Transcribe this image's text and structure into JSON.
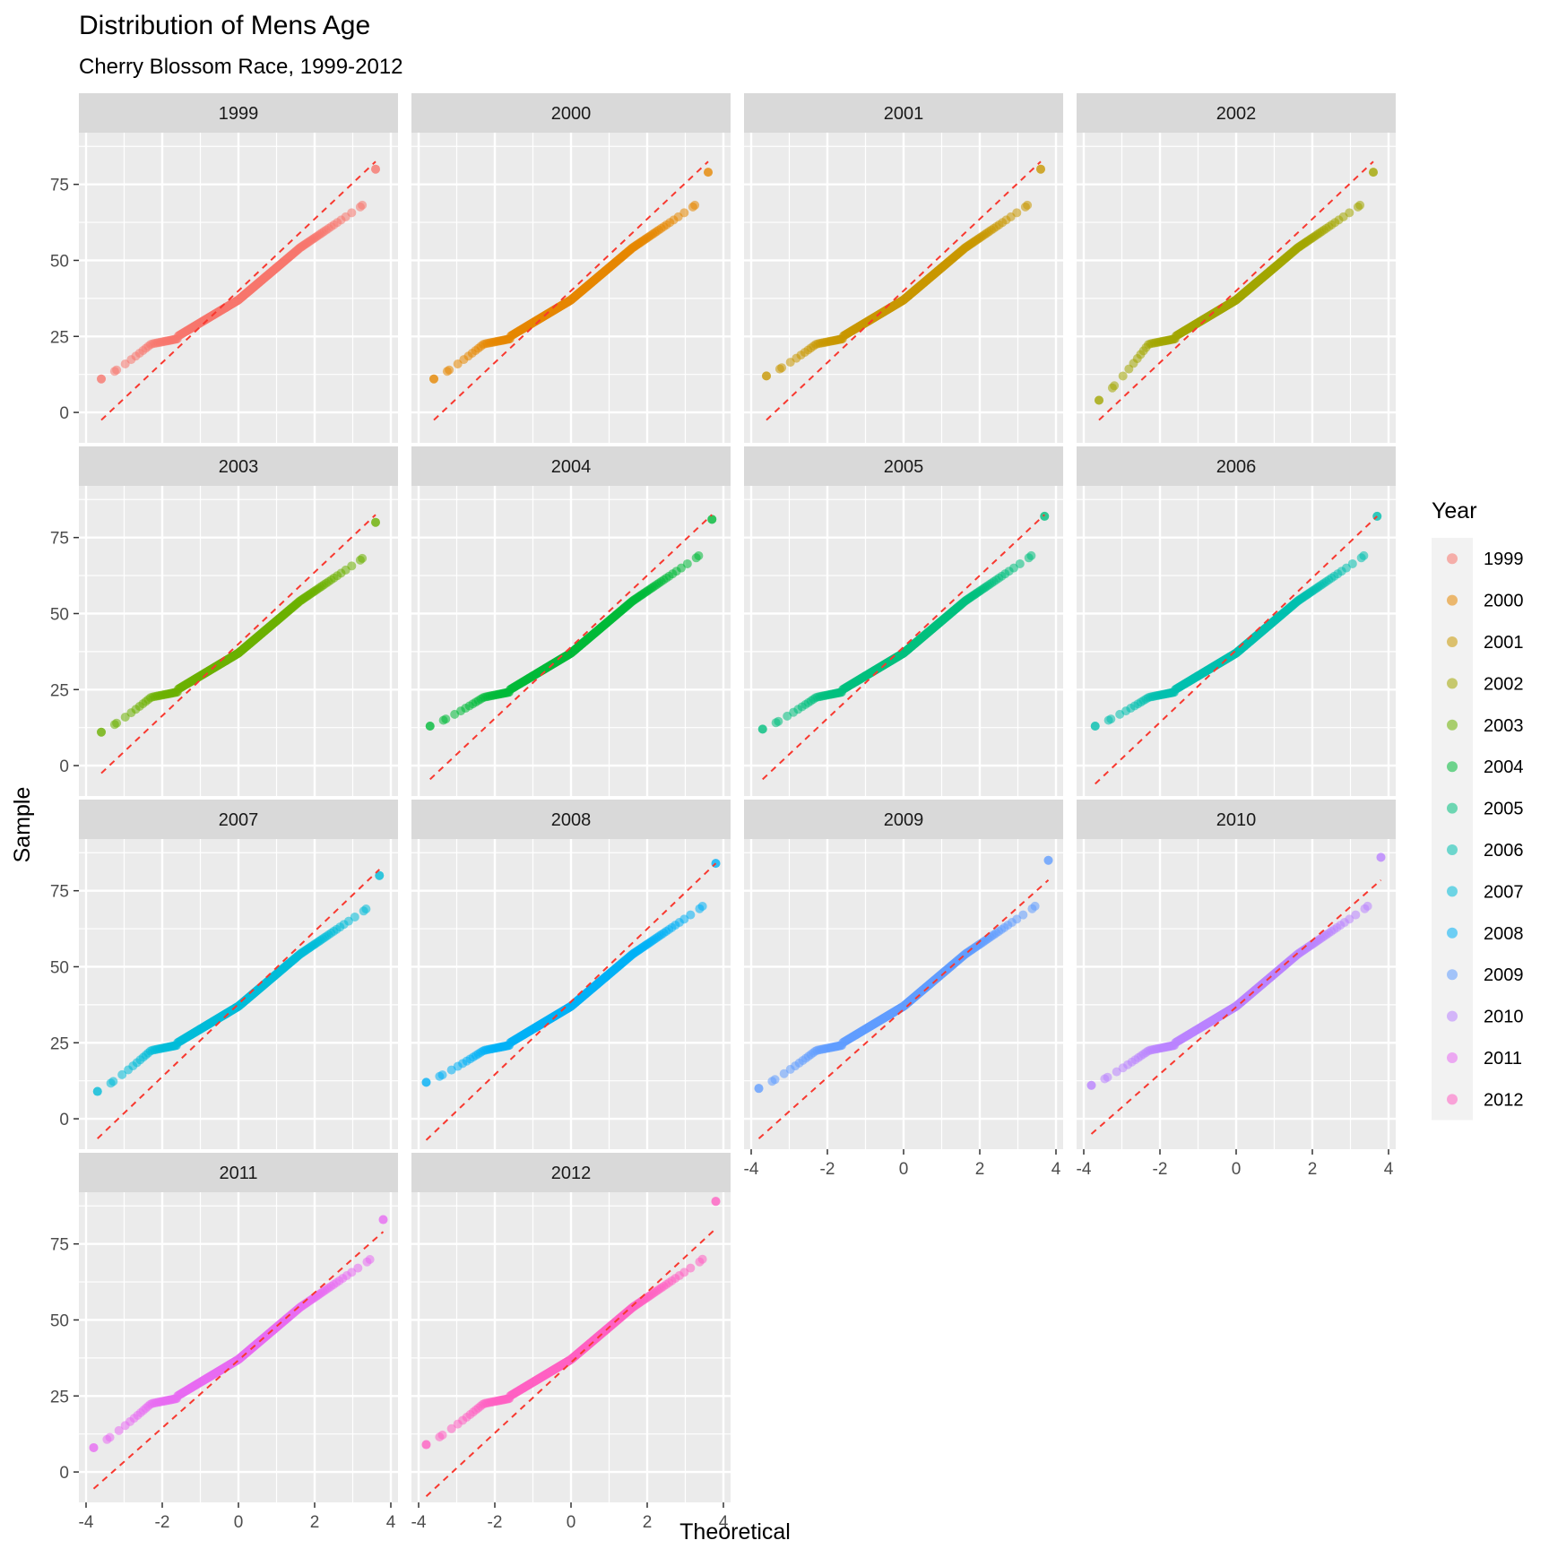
{
  "chart_data": {
    "type": "scatter",
    "title": "Distribution of Mens Age",
    "subtitle": "Cherry Blossom Race, 1999-2012",
    "xlabel": "Theoretical",
    "ylabel": "Sample",
    "xlim": [
      -4,
      4
    ],
    "ylim": [
      -10,
      92
    ],
    "x_ticks": [
      -4,
      -2,
      0,
      2,
      4
    ],
    "x_tick_labels": [
      "-4",
      "-2",
      "0",
      "2",
      "4"
    ],
    "y_ticks": [
      0,
      25,
      50,
      75
    ],
    "y_tick_labels": [
      "0",
      "25",
      "50",
      "75"
    ],
    "grid": true,
    "legend": {
      "title": "Year",
      "placement": "right"
    },
    "reference_line": {
      "style": "dashed",
      "color": "#f8382f"
    },
    "facets": [
      {
        "label": "1999",
        "color": "#F8766D",
        "x_min": -3.6,
        "x_max": 3.6,
        "y_min": 11,
        "y_max": 80,
        "line": [
          [
            -3.6,
            -2.5
          ],
          [
            3.6,
            82.5
          ]
        ]
      },
      {
        "label": "2000",
        "color": "#E58700",
        "x_min": -3.6,
        "x_max": 3.6,
        "y_min": 11,
        "y_max": 79,
        "line": [
          [
            -3.6,
            -2.5
          ],
          [
            3.6,
            82.5
          ]
        ]
      },
      {
        "label": "2001",
        "color": "#C99800",
        "x_min": -3.6,
        "x_max": 3.6,
        "y_min": 12,
        "y_max": 80,
        "line": [
          [
            -3.6,
            -2.5
          ],
          [
            3.6,
            82.5
          ]
        ]
      },
      {
        "label": "2002",
        "color": "#A3A500",
        "x_min": -3.6,
        "x_max": 3.6,
        "y_min": 4,
        "y_max": 79,
        "line": [
          [
            -3.6,
            -2.5
          ],
          [
            3.6,
            82.5
          ]
        ]
      },
      {
        "label": "2003",
        "color": "#6BB100",
        "x_min": -3.6,
        "x_max": 3.6,
        "y_min": 11,
        "y_max": 80,
        "line": [
          [
            -3.6,
            -2.5
          ],
          [
            3.6,
            82.5
          ]
        ]
      },
      {
        "label": "2004",
        "color": "#00BA38",
        "x_min": -3.7,
        "x_max": 3.7,
        "y_min": 13,
        "y_max": 81,
        "line": [
          [
            -3.7,
            -4.5
          ],
          [
            3.7,
            82.5
          ]
        ]
      },
      {
        "label": "2005",
        "color": "#00BF7D",
        "x_min": -3.7,
        "x_max": 3.7,
        "y_min": 12,
        "y_max": 82,
        "line": [
          [
            -3.7,
            -4.5
          ],
          [
            3.7,
            82.5
          ]
        ]
      },
      {
        "label": "2006",
        "color": "#00C0AF",
        "x_min": -3.7,
        "x_max": 3.7,
        "y_min": 13,
        "y_max": 82,
        "line": [
          [
            -3.7,
            -6
          ],
          [
            3.7,
            82
          ]
        ]
      },
      {
        "label": "2007",
        "color": "#00BCD8",
        "x_min": -3.7,
        "x_max": 3.7,
        "y_min": 9,
        "y_max": 80,
        "line": [
          [
            -3.7,
            -6.5
          ],
          [
            3.7,
            82
          ]
        ]
      },
      {
        "label": "2008",
        "color": "#00B0F6",
        "x_min": -3.8,
        "x_max": 3.8,
        "y_min": 12,
        "y_max": 84,
        "line": [
          [
            -3.8,
            -7
          ],
          [
            3.8,
            84
          ]
        ]
      },
      {
        "label": "2009",
        "color": "#619CFF",
        "x_min": -3.8,
        "x_max": 3.8,
        "y_min": 10,
        "y_max": 85,
        "line": [
          [
            -3.8,
            -6.5
          ],
          [
            3.8,
            78.5
          ]
        ]
      },
      {
        "label": "2010",
        "color": "#B983FF",
        "x_min": -3.8,
        "x_max": 3.8,
        "y_min": 11,
        "y_max": 86,
        "line": [
          [
            -3.8,
            -5
          ],
          [
            3.8,
            78.5
          ]
        ]
      },
      {
        "label": "2011",
        "color": "#E76BF3",
        "x_min": -3.8,
        "x_max": 3.8,
        "y_min": 8,
        "y_max": 83,
        "line": [
          [
            -3.8,
            -5.5
          ],
          [
            3.8,
            79
          ]
        ]
      },
      {
        "label": "2012",
        "color": "#FF61C3",
        "x_min": -3.8,
        "x_max": 3.8,
        "y_min": 9,
        "y_max": 89,
        "line": [
          [
            -3.8,
            -8
          ],
          [
            3.8,
            80
          ]
        ]
      }
    ]
  }
}
